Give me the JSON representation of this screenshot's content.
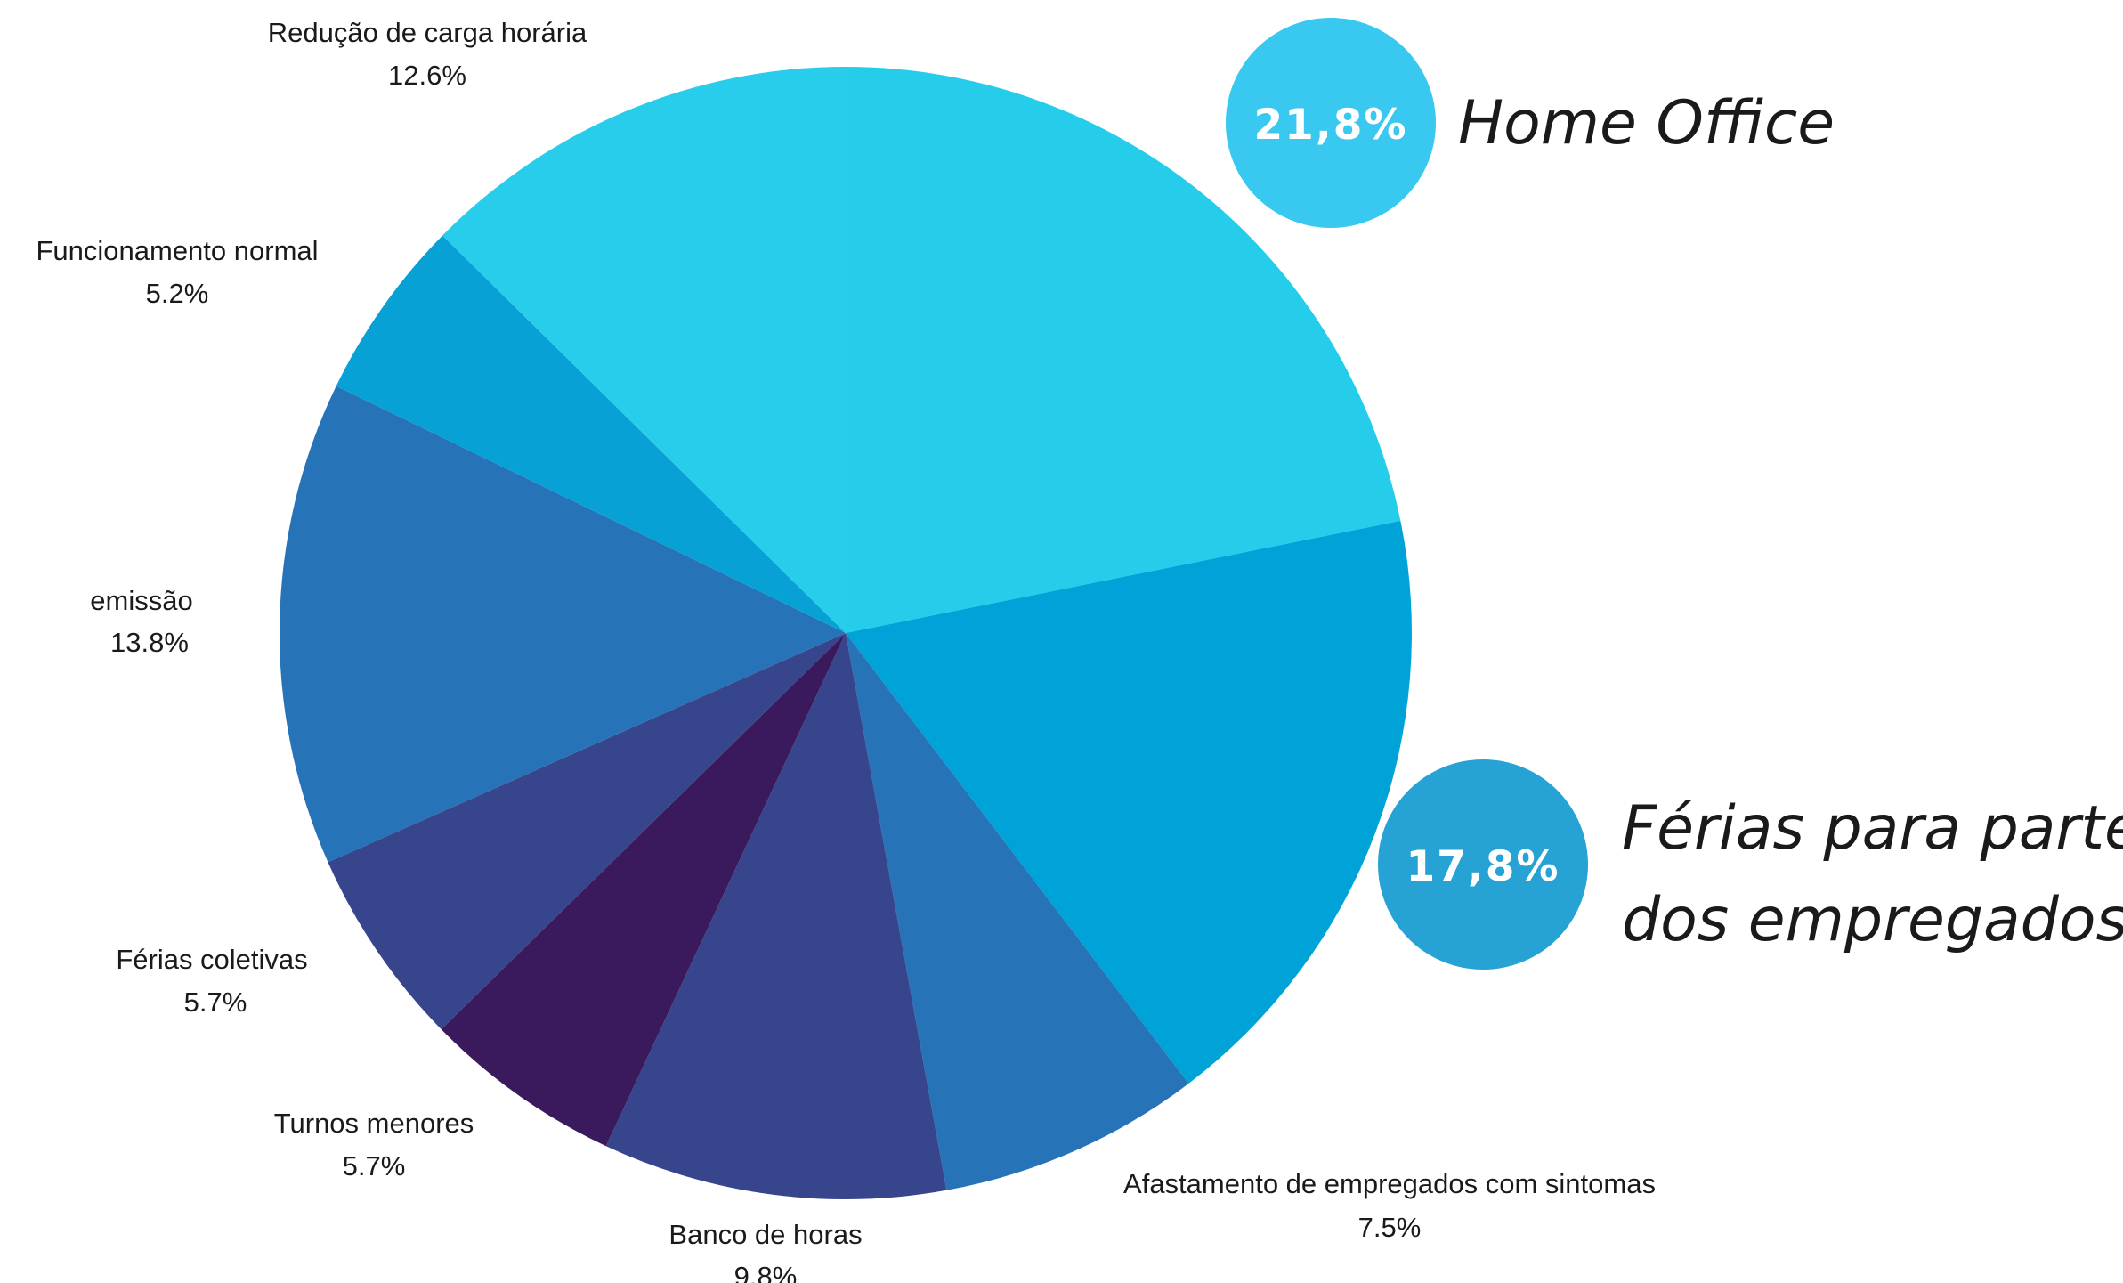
{
  "chart_data": {
    "type": "pie",
    "start_angle_deg": 0,
    "direction": "clockwise",
    "slices": [
      {
        "label": "",
        "value": 21.8,
        "color": "#26cdeb"
      },
      {
        "label": "",
        "value": 17.8,
        "color": "#00a3d8"
      },
      {
        "label": "Afastamento de empregados com sintomas",
        "value": 7.5,
        "display": "7.5%",
        "color": "#2674b7"
      },
      {
        "label": "Banco de horas",
        "value": 9.8,
        "display": "9.8%",
        "color": "#37468c"
      },
      {
        "label": "Turnos menores",
        "value": 5.7,
        "display": "5.7%",
        "color": "#3a1a5c"
      },
      {
        "label": "Férias coletivas",
        "value": 5.7,
        "display": "5.7%",
        "color": "#37468c"
      },
      {
        "label": "emissão",
        "value": 13.8,
        "display": "13.8%",
        "color": "#2674b7"
      },
      {
        "label": "Funcionamento normal",
        "value": 5.2,
        "display": "5.2%",
        "color": "#07a1d6"
      },
      {
        "label": "Redução de carga horária",
        "value": 12.6,
        "display": "12.6%",
        "color": "#29cdec"
      }
    ],
    "callouts": [
      {
        "value_text": "21,8%",
        "lines": [
          "Home Office"
        ],
        "badge_color": "#38c8f0"
      },
      {
        "value_text": "17,8%",
        "lines": [
          "Férias para parte",
          "dos empregados"
        ],
        "badge_color": "#26a2d4"
      }
    ]
  }
}
